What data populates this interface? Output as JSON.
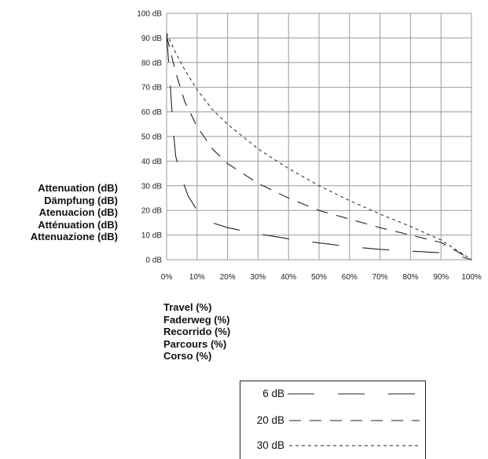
{
  "chart_data": {
    "type": "line",
    "xlabel_lines": [
      "Travel (%)",
      "Faderweg (%)",
      "Recorrido (%)",
      "Parcours (%)",
      "Corso (%)"
    ],
    "ylabel_lines": [
      "Attenuation (dB)",
      "Dämpfung (dB)",
      "Atenuacion (dB)",
      "Atténuation (dB)",
      "Attenuazione (dB)"
    ],
    "x_ticks": [
      "0%",
      "10%",
      "20%",
      "30%",
      "40%",
      "50%",
      "60%",
      "70%",
      "80%",
      "90%",
      "100%"
    ],
    "y_ticks": [
      "0 dB",
      "10 dB",
      "20 dB",
      "30 dB",
      "40 dB",
      "50 dB",
      "60 dB",
      "70 dB",
      "80 dB",
      "90 dB",
      "100 dB"
    ],
    "xlim": [
      0,
      100
    ],
    "ylim": [
      0,
      100
    ],
    "grid": true,
    "legend_position": "bottom-right",
    "series": [
      {
        "name": "6 dB",
        "style": "long-dash",
        "x": [
          0,
          1,
          2,
          3,
          5,
          7,
          10,
          15,
          20,
          30,
          40,
          50,
          60,
          70,
          80,
          90,
          95,
          100
        ],
        "y": [
          91,
          75,
          55,
          42,
          33,
          26,
          20,
          15,
          13,
          10.5,
          8.5,
          6.8,
          5.3,
          4.2,
          3.5,
          2.8,
          1.8,
          0
        ]
      },
      {
        "name": "20 dB",
        "style": "dashed",
        "x": [
          0,
          3,
          6,
          10,
          15,
          20,
          30,
          40,
          50,
          60,
          70,
          80,
          90,
          100
        ],
        "y": [
          91,
          76,
          64,
          54,
          45,
          39,
          31,
          25,
          20,
          16.5,
          13,
          10,
          7,
          0
        ]
      },
      {
        "name": "30 dB",
        "style": "dotted",
        "x": [
          0,
          3,
          6,
          10,
          15,
          20,
          30,
          40,
          50,
          60,
          70,
          80,
          90,
          100
        ],
        "y": [
          92,
          84,
          77,
          69,
          61,
          55,
          45,
          37,
          30,
          24,
          18.5,
          13.5,
          8,
          0
        ]
      }
    ]
  }
}
